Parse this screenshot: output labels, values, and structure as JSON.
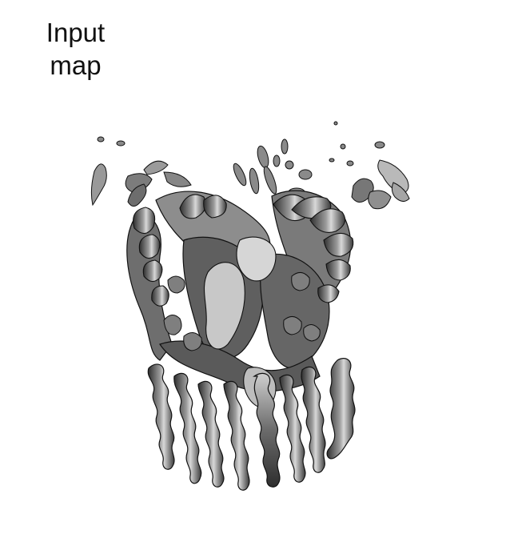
{
  "figure": {
    "label_line1": "Input",
    "label_line2": "map",
    "subject_icon": "cryo-em-density-map-icon"
  },
  "colors": {
    "background": "#ffffff",
    "density_dark": "#3a3a3a",
    "density_mid": "#7d7d7d",
    "density_light": "#cfcfcf",
    "outline": "#111111"
  }
}
